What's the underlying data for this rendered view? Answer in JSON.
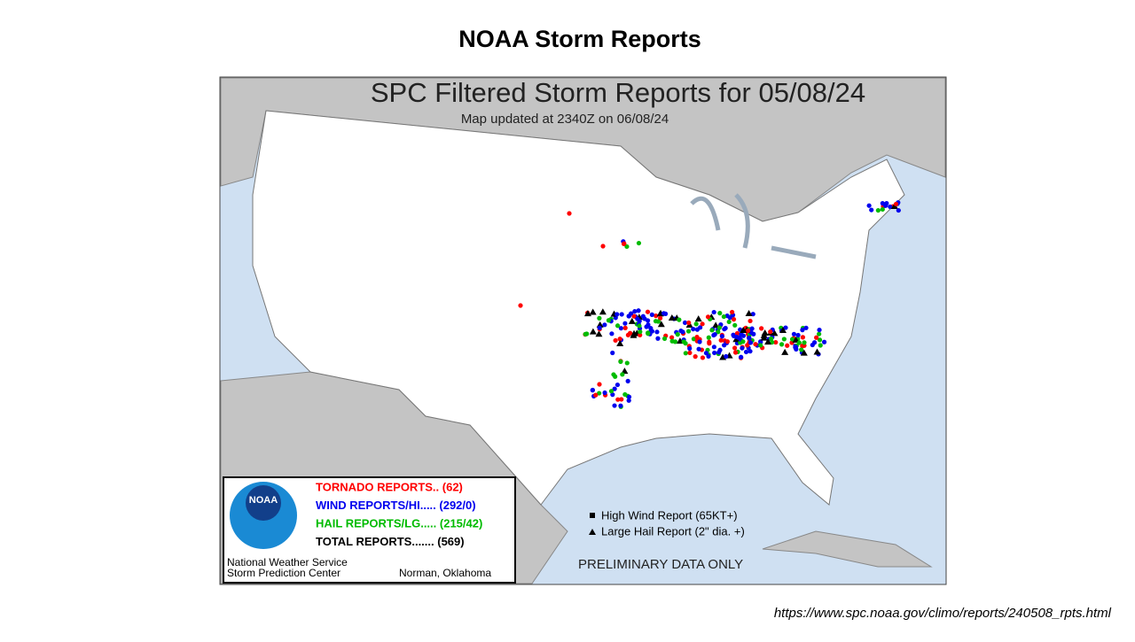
{
  "slide": {
    "title": "NOAA Storm Reports",
    "source_url": "https://www.spc.noaa.gov/climo/reports/240508_rpts.html"
  },
  "map": {
    "title": "SPC Filtered Storm Reports for 05/08/24",
    "subtitle": "Map updated at 2340Z on 06/08/24",
    "logo_text": "NOAA",
    "legend": {
      "entries": [
        {
          "text": "TORNADO REPORTS.. (62)",
          "color": "#ff0000"
        },
        {
          "text": "WIND REPORTS/HI..... (292/0)",
          "color": "#0000ee"
        },
        {
          "text": "HAIL REPORTS/LG..... (215/42)",
          "color": "#00bb00"
        },
        {
          "text": "TOTAL REPORTS....... (569)",
          "color": "#000000"
        }
      ],
      "markers": [
        "High Wind Report (65KT+)",
        "Large Hail Report (2\" dia. +)"
      ]
    },
    "footer": {
      "agency": "National Weather Service",
      "center": "Storm Prediction Center",
      "location": "Norman, Oklahoma",
      "notice": "PRELIMINARY DATA ONLY"
    }
  }
}
